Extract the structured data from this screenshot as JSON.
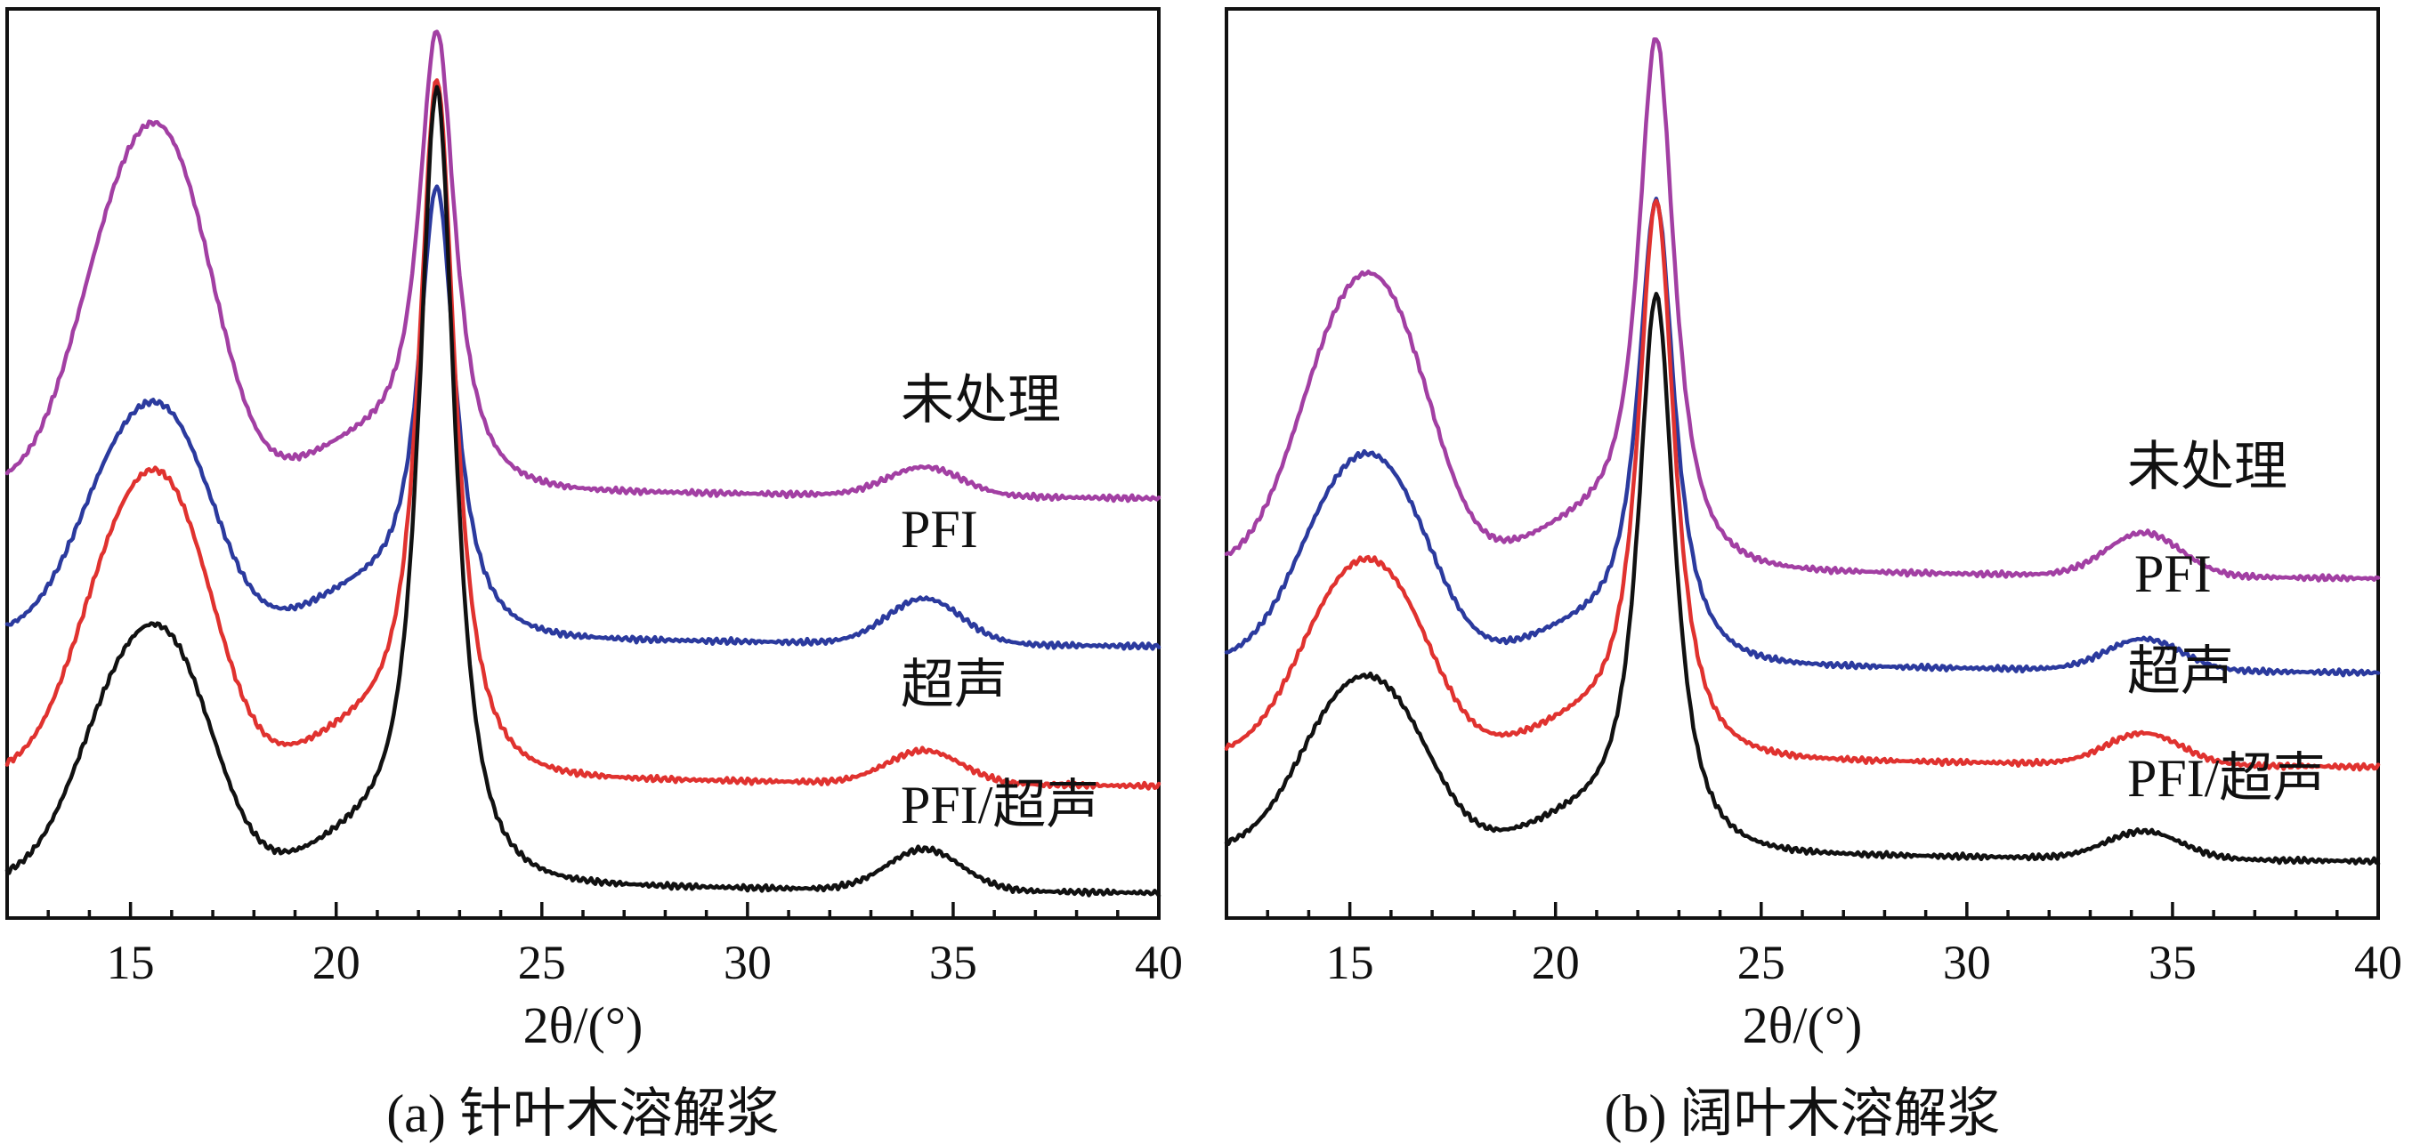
{
  "chart_data": [
    {
      "type": "line",
      "title": "(a) 针叶木溶解浆",
      "xlabel": "2θ/(°)",
      "ylabel": "",
      "xlim": [
        12,
        40
      ],
      "xticks": [
        15,
        20,
        25,
        30,
        35,
        40
      ],
      "y_ticks_shown": false,
      "grid": false,
      "legend": "inline-right",
      "series": [
        {
          "name": "未处理",
          "color": "#a23fa3",
          "baseline": 0.48,
          "peak1": 0.31,
          "shoulder": 0.3,
          "peak_main": 1.0,
          "peak_34": 0.035,
          "tail_drop": 0.0
        },
        {
          "name": "PFI",
          "color": "#2b3a9e",
          "baseline": 0.3,
          "peak1": 0.2,
          "shoulder": 0.19,
          "peak_main": 0.81,
          "peak_34": 0.055,
          "tail_drop": 0.0
        },
        {
          "name": "超声",
          "color": "#e0322f",
          "baseline": 0.13,
          "peak1": 0.26,
          "shoulder": 0.25,
          "peak_main": 0.94,
          "peak_34": 0.04,
          "tail_drop": 0.0
        },
        {
          "name": "PFI/超声",
          "color": "#111111",
          "baseline": 0.0,
          "peak1": 0.22,
          "shoulder": 0.21,
          "peak_main": 0.93,
          "peak_34": 0.05,
          "tail_drop": 0.0
        }
      ]
    },
    {
      "type": "line",
      "title": "(b) 阔叶木溶解浆",
      "xlabel": "2θ/(°)",
      "ylabel": "",
      "xlim": [
        12,
        40
      ],
      "xticks": [
        15,
        20,
        25,
        30,
        35,
        40
      ],
      "y_ticks_shown": false,
      "grid": false,
      "legend": "inline-right",
      "series": [
        {
          "name": "未处理",
          "color": "#a23fa3",
          "baseline": 0.36,
          "peak1": 0.28,
          "shoulder": 0.23,
          "peak_main": 1.0,
          "peak_34": 0.055,
          "tail_drop": 0.0
        },
        {
          "name": "PFI",
          "color": "#2b3a9e",
          "baseline": 0.24,
          "peak1": 0.2,
          "shoulder": 0.16,
          "peak_main": 0.8,
          "peak_34": 0.04,
          "tail_drop": 0.0
        },
        {
          "name": "超声",
          "color": "#e0322f",
          "baseline": 0.12,
          "peak1": 0.19,
          "shoulder": 0.15,
          "peak_main": 0.8,
          "peak_34": 0.04,
          "tail_drop": 0.0
        },
        {
          "name": "PFI/超声",
          "color": "#111111",
          "baseline": 0.0,
          "peak1": 0.17,
          "shoulder": 0.13,
          "peak_main": 0.68,
          "peak_34": 0.035,
          "tail_drop": 0.0
        }
      ]
    }
  ]
}
